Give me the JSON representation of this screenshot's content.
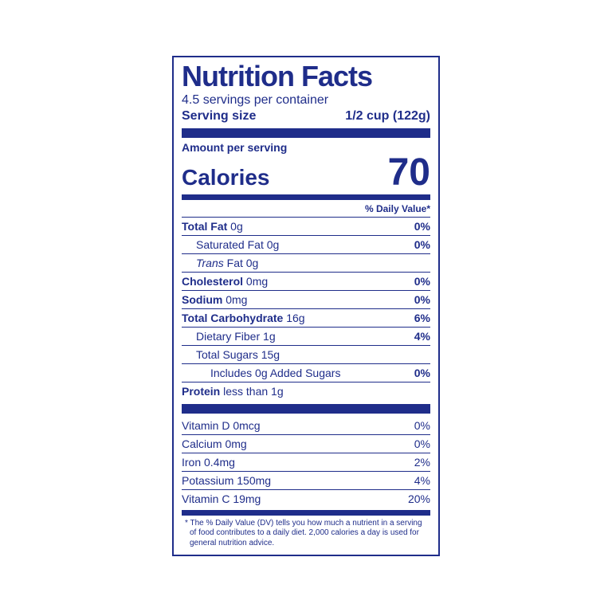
{
  "color": "#1f2d8a",
  "bg": "#ffffff",
  "title": "Nutrition Facts",
  "servings_per_container": "4.5 servings per container",
  "serving_size_label": "Serving size",
  "serving_size_value": "1/2 cup (122g)",
  "amount_per_serving": "Amount per serving",
  "calories_label": "Calories",
  "calories_value": "70",
  "dv_header": "% Daily Value*",
  "nutrients": [
    {
      "label": "Total Fat",
      "amount": "0g",
      "dv": "0%",
      "bold": true,
      "indent": 0
    },
    {
      "label": "Saturated Fat",
      "amount": "0g",
      "dv": "0%",
      "bold": false,
      "indent": 1
    },
    {
      "label": "Trans",
      "label_suffix": " Fat",
      "amount": "0g",
      "dv": "",
      "bold": false,
      "indent": 1,
      "italic_label": true
    },
    {
      "label": "Cholesterol",
      "amount": "0mg",
      "dv": "0%",
      "bold": true,
      "indent": 0
    },
    {
      "label": "Sodium",
      "amount": "0mg",
      "dv": "0%",
      "bold": true,
      "indent": 0
    },
    {
      "label": "Total Carbohydrate",
      "amount": "16g",
      "dv": "6%",
      "bold": true,
      "indent": 0
    },
    {
      "label": "Dietary Fiber",
      "amount": "1g",
      "dv": "4%",
      "bold": false,
      "indent": 1
    },
    {
      "label": "Total Sugars",
      "amount": "15g",
      "dv": "",
      "bold": false,
      "indent": 1
    },
    {
      "label": "Includes 0g Added Sugars",
      "amount": "",
      "dv": "0%",
      "bold": false,
      "indent": 2
    },
    {
      "label": "Protein",
      "amount": "less than 1g",
      "dv": "",
      "bold": true,
      "indent": 0
    }
  ],
  "vitamins": [
    {
      "label": "Vitamin D",
      "amount": "0mcg",
      "dv": "0%"
    },
    {
      "label": "Calcium",
      "amount": "0mg",
      "dv": "0%"
    },
    {
      "label": "Iron",
      "amount": "0.4mg",
      "dv": "2%"
    },
    {
      "label": "Potassium",
      "amount": "150mg",
      "dv": "4%"
    },
    {
      "label": "Vitamin C",
      "amount": "19mg",
      "dv": "20%"
    }
  ],
  "footnote": "* The % Daily Value (DV) tells you how much a nutrient in a serving of food contributes to a daily diet. 2,000 calories a day is used for general nutrition advice."
}
